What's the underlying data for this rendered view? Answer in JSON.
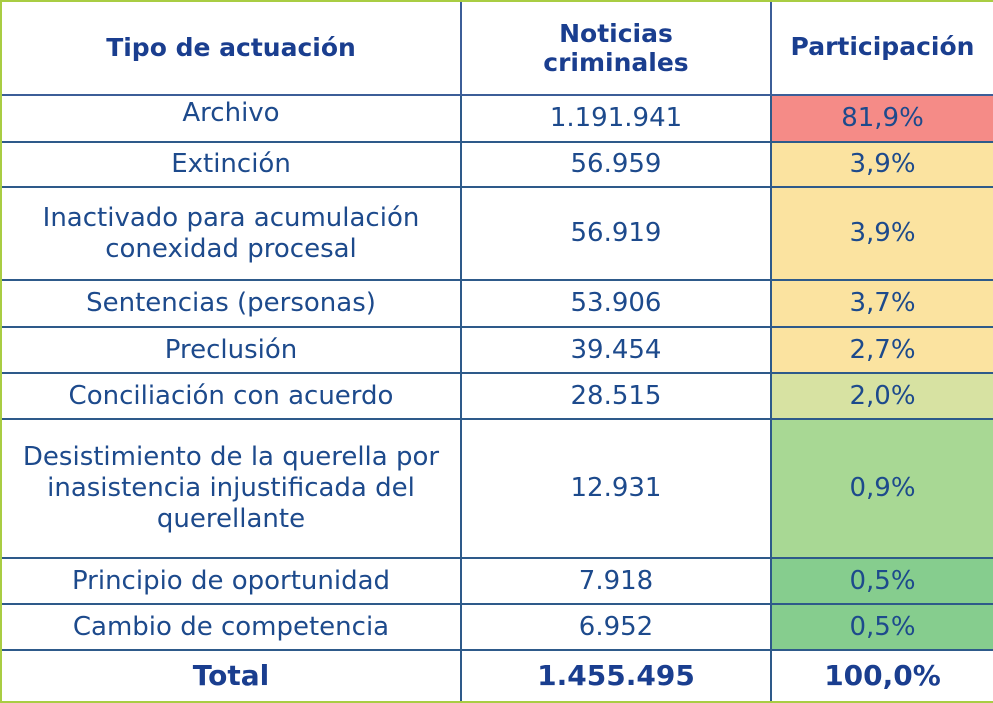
{
  "table": {
    "headers": {
      "tipo": "Tipo de actuación",
      "noticias": "Noticias criminales",
      "participacion": "Participación"
    },
    "rows": [
      {
        "tipo": "Archivo",
        "noticias": "1.191.941",
        "participacion": "81,9%",
        "color": "#f58b87"
      },
      {
        "tipo": "Extinción",
        "noticias": "56.959",
        "participacion": "3,9%",
        "color": "#fbe3a0"
      },
      {
        "tipo_line1": "Inactivado para acumulación",
        "tipo_line2": "conexidad procesal",
        "noticias": "56.919",
        "participacion": "3,9%",
        "color": "#fbe3a0"
      },
      {
        "tipo": "Sentencias (personas)",
        "noticias": "53.906",
        "participacion": "3,7%",
        "color": "#fbe3a0"
      },
      {
        "tipo": "Preclusión",
        "noticias": "39.454",
        "participacion": "2,7%",
        "color": "#fbe3a0"
      },
      {
        "tipo": "Conciliación con acuerdo",
        "noticias": "28.515",
        "participacion": "2,0%",
        "color": "#d7e2a2"
      },
      {
        "tipo_line1": "Desistimiento de la querella por",
        "tipo_line2": "inasistencia injustificada del",
        "tipo_line3": "querellante",
        "noticias": "12.931",
        "participacion": "0,9%",
        "color": "#a8d894"
      },
      {
        "tipo": "Principio de oportunidad",
        "noticias": "7.918",
        "participacion": "0,5%",
        "color": "#86cd8e"
      },
      {
        "tipo": "Cambio de competencia",
        "noticias": "6.952",
        "participacion": "0,5%",
        "color": "#86cd8e"
      }
    ],
    "total": {
      "label": "Total",
      "noticias": "1.455.495",
      "participacion": "100,0%"
    }
  }
}
